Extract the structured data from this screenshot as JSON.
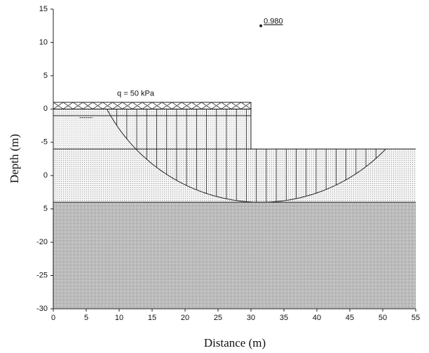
{
  "chart_data": {
    "type": "slope-section",
    "xlabel": "Distance (m)",
    "ylabel": "Depth (m)",
    "xlim": [
      0,
      55
    ],
    "ylim": [
      -30,
      15
    ],
    "xticks": [
      0,
      5,
      10,
      15,
      20,
      25,
      30,
      35,
      40,
      45,
      50,
      55
    ],
    "yticks": [
      15,
      10,
      5,
      0,
      -5,
      {
        "value": -10,
        "label": "0"
      },
      {
        "value": -15,
        "label": "5"
      },
      -20,
      -25,
      -30
    ],
    "load_label": "q = 50 kPa",
    "slip_center": {
      "x": 31.5,
      "y": 12.5,
      "label": "0.980"
    }
  }
}
